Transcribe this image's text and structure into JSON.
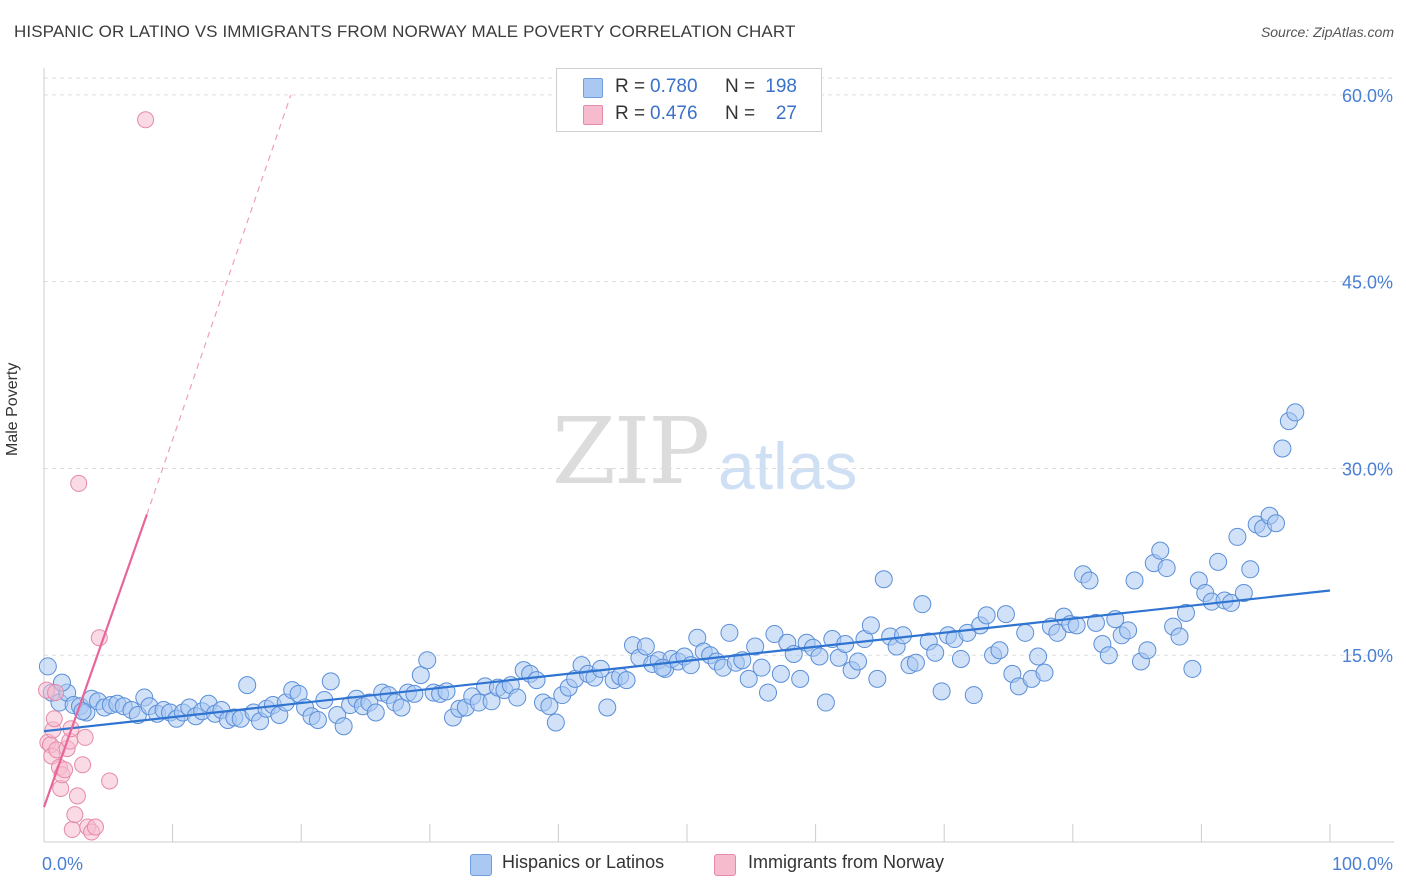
{
  "title": "HISPANIC OR LATINO VS IMMIGRANTS FROM NORWAY MALE POVERTY CORRELATION CHART",
  "source": "Source: ZipAtlas.com",
  "watermark": {
    "zip": "ZIP",
    "atlas": "atlas"
  },
  "legend": {
    "r_label": "R =",
    "n_label": "N =",
    "rows": [
      {
        "r": "0.780",
        "n": "198",
        "color": "#aac8f2"
      },
      {
        "r": "0.476",
        "n": "27",
        "color": "#f6bccd"
      }
    ]
  },
  "bottom_legend": {
    "blue": "Hispanics or Latinos",
    "pink": "Immigrants from Norway"
  },
  "chart_data": {
    "type": "scatter",
    "title": "HISPANIC OR LATINO VS IMMIGRANTS FROM NORWAY MALE POVERTY CORRELATION CHART",
    "xlabel": "",
    "ylabel": "Male Poverty",
    "xlim": [
      0,
      100
    ],
    "ylim": [
      0,
      62
    ],
    "x_ticks": [
      "0.0%",
      "100.0%"
    ],
    "y_ticks": [
      {
        "value": 15,
        "label": "15.0%"
      },
      {
        "value": 30,
        "label": "30.0%"
      },
      {
        "value": 45,
        "label": "45.0%"
      },
      {
        "value": 60,
        "label": "60.0%"
      }
    ],
    "grid": true,
    "colors": {
      "blue": "#2f74d0",
      "blue_fill": "#aac8f2",
      "pink": "#e8659a",
      "pink_fill": "#f6bccd"
    },
    "series": [
      {
        "name": "Hispanics or Latinos",
        "R": 0.78,
        "N": 198,
        "trend": {
          "x0": 0,
          "y0": 8.9,
          "x1": 100,
          "y1": 20.2
        },
        "points": [
          [
            0.3,
            14.1
          ],
          [
            0.6,
            12.0
          ],
          [
            1.2,
            11.2
          ],
          [
            1.8,
            12.0
          ],
          [
            2.3,
            11.0
          ],
          [
            2.8,
            10.9
          ],
          [
            3.3,
            10.4
          ],
          [
            3.7,
            11.5
          ],
          [
            4.2,
            11.3
          ],
          [
            4.7,
            10.8
          ],
          [
            5.2,
            11.0
          ],
          [
            5.7,
            11.1
          ],
          [
            6.2,
            10.9
          ],
          [
            6.8,
            10.6
          ],
          [
            7.3,
            10.2
          ],
          [
            7.8,
            11.6
          ],
          [
            8.2,
            10.9
          ],
          [
            8.8,
            10.3
          ],
          [
            9.3,
            10.6
          ],
          [
            9.8,
            10.4
          ],
          [
            10.3,
            9.9
          ],
          [
            10.8,
            10.4
          ],
          [
            11.3,
            10.8
          ],
          [
            11.8,
            10.1
          ],
          [
            12.3,
            10.5
          ],
          [
            12.8,
            11.1
          ],
          [
            13.3,
            10.3
          ],
          [
            13.8,
            10.6
          ],
          [
            14.3,
            9.8
          ],
          [
            14.8,
            10.0
          ],
          [
            15.3,
            9.9
          ],
          [
            15.8,
            12.6
          ],
          [
            16.3,
            10.4
          ],
          [
            16.8,
            9.7
          ],
          [
            17.3,
            10.7
          ],
          [
            17.8,
            11.0
          ],
          [
            18.3,
            10.2
          ],
          [
            18.8,
            11.2
          ],
          [
            19.3,
            12.2
          ],
          [
            19.8,
            11.9
          ],
          [
            20.3,
            10.8
          ],
          [
            20.8,
            10.1
          ],
          [
            21.3,
            9.8
          ],
          [
            21.8,
            11.4
          ],
          [
            22.3,
            12.9
          ],
          [
            22.8,
            10.2
          ],
          [
            23.3,
            9.3
          ],
          [
            23.8,
            11.0
          ],
          [
            24.3,
            11.5
          ],
          [
            24.8,
            10.9
          ],
          [
            25.3,
            11.2
          ],
          [
            25.8,
            10.4
          ],
          [
            26.3,
            12.0
          ],
          [
            26.8,
            11.8
          ],
          [
            27.3,
            11.2
          ],
          [
            27.8,
            10.8
          ],
          [
            28.3,
            12.0
          ],
          [
            28.8,
            11.9
          ],
          [
            29.3,
            13.4
          ],
          [
            29.8,
            14.6
          ],
          [
            30.3,
            12.0
          ],
          [
            30.8,
            11.9
          ],
          [
            31.3,
            12.1
          ],
          [
            31.8,
            10.0
          ],
          [
            32.3,
            10.7
          ],
          [
            32.8,
            10.8
          ],
          [
            33.3,
            11.7
          ],
          [
            33.8,
            11.2
          ],
          [
            34.3,
            12.5
          ],
          [
            34.8,
            11.3
          ],
          [
            35.3,
            12.4
          ],
          [
            35.8,
            12.2
          ],
          [
            36.3,
            12.6
          ],
          [
            36.8,
            11.6
          ],
          [
            37.3,
            13.8
          ],
          [
            37.8,
            13.5
          ],
          [
            38.3,
            13.0
          ],
          [
            38.8,
            11.2
          ],
          [
            39.3,
            10.9
          ],
          [
            39.8,
            9.6
          ],
          [
            40.3,
            11.8
          ],
          [
            40.8,
            12.4
          ],
          [
            41.3,
            13.1
          ],
          [
            41.8,
            14.2
          ],
          [
            42.3,
            13.5
          ],
          [
            42.8,
            13.2
          ],
          [
            43.3,
            13.9
          ],
          [
            43.8,
            10.8
          ],
          [
            44.3,
            13.0
          ],
          [
            44.8,
            13.3
          ],
          [
            45.3,
            13.0
          ],
          [
            45.8,
            15.8
          ],
          [
            46.3,
            14.8
          ],
          [
            46.8,
            15.7
          ],
          [
            47.3,
            14.3
          ],
          [
            47.8,
            14.6
          ],
          [
            48.3,
            13.9
          ],
          [
            48.8,
            14.7
          ],
          [
            49.3,
            14.5
          ],
          [
            49.8,
            14.9
          ],
          [
            50.3,
            14.2
          ],
          [
            50.8,
            16.4
          ],
          [
            51.3,
            15.3
          ],
          [
            51.8,
            15.0
          ],
          [
            52.3,
            14.5
          ],
          [
            52.8,
            14.0
          ],
          [
            53.3,
            16.8
          ],
          [
            53.8,
            14.4
          ],
          [
            54.3,
            14.6
          ],
          [
            54.8,
            13.1
          ],
          [
            55.3,
            15.7
          ],
          [
            55.8,
            14.0
          ],
          [
            56.3,
            12.0
          ],
          [
            56.8,
            16.7
          ],
          [
            57.3,
            13.5
          ],
          [
            57.8,
            16.0
          ],
          [
            58.3,
            15.1
          ],
          [
            58.8,
            13.1
          ],
          [
            59.3,
            16.0
          ],
          [
            59.8,
            15.6
          ],
          [
            60.3,
            14.9
          ],
          [
            60.8,
            11.2
          ],
          [
            61.3,
            16.3
          ],
          [
            61.8,
            14.8
          ],
          [
            62.3,
            15.9
          ],
          [
            62.8,
            13.8
          ],
          [
            63.3,
            14.5
          ],
          [
            63.8,
            16.3
          ],
          [
            64.3,
            17.4
          ],
          [
            64.8,
            13.1
          ],
          [
            65.3,
            21.1
          ],
          [
            65.8,
            16.5
          ],
          [
            66.3,
            15.7
          ],
          [
            66.8,
            16.6
          ],
          [
            67.3,
            14.2
          ],
          [
            67.8,
            14.4
          ],
          [
            68.3,
            19.1
          ],
          [
            68.8,
            16.1
          ],
          [
            69.3,
            15.2
          ],
          [
            69.8,
            12.1
          ],
          [
            70.3,
            16.6
          ],
          [
            70.8,
            16.3
          ],
          [
            71.3,
            14.7
          ],
          [
            71.8,
            16.8
          ],
          [
            72.3,
            11.8
          ],
          [
            72.8,
            17.4
          ],
          [
            73.3,
            18.2
          ],
          [
            73.8,
            15.0
          ],
          [
            74.3,
            15.4
          ],
          [
            74.8,
            18.3
          ],
          [
            75.3,
            13.5
          ],
          [
            75.8,
            12.5
          ],
          [
            76.3,
            16.8
          ],
          [
            76.8,
            13.1
          ],
          [
            77.3,
            14.9
          ],
          [
            77.8,
            13.6
          ],
          [
            78.3,
            17.3
          ],
          [
            78.8,
            16.8
          ],
          [
            79.3,
            18.1
          ],
          [
            79.8,
            17.5
          ],
          [
            80.3,
            17.4
          ],
          [
            80.8,
            21.5
          ],
          [
            81.3,
            21.0
          ],
          [
            81.8,
            17.6
          ],
          [
            82.3,
            15.9
          ],
          [
            82.8,
            15.0
          ],
          [
            83.3,
            17.9
          ],
          [
            83.8,
            16.6
          ],
          [
            84.3,
            17.0
          ],
          [
            84.8,
            21.0
          ],
          [
            85.3,
            14.5
          ],
          [
            85.8,
            15.4
          ],
          [
            86.3,
            22.4
          ],
          [
            86.8,
            23.4
          ],
          [
            87.3,
            22.0
          ],
          [
            87.8,
            17.3
          ],
          [
            88.3,
            16.5
          ],
          [
            88.8,
            18.4
          ],
          [
            89.3,
            13.9
          ],
          [
            89.8,
            21.0
          ],
          [
            90.3,
            20.0
          ],
          [
            90.8,
            19.3
          ],
          [
            91.3,
            22.5
          ],
          [
            91.8,
            19.4
          ],
          [
            92.3,
            19.2
          ],
          [
            92.8,
            24.5
          ],
          [
            93.3,
            20.0
          ],
          [
            93.8,
            21.9
          ],
          [
            94.3,
            25.5
          ],
          [
            94.8,
            25.2
          ],
          [
            95.3,
            26.2
          ],
          [
            95.8,
            25.6
          ],
          [
            96.3,
            31.6
          ],
          [
            96.8,
            33.8
          ],
          [
            97.3,
            34.5
          ],
          [
            1.4,
            12.8
          ],
          [
            3.0,
            10.5
          ],
          [
            48.1,
            14.0
          ]
        ]
      },
      {
        "name": "Immigrants from Norway",
        "R": 0.476,
        "N": 27,
        "trend": {
          "x0": 0,
          "y0": 2.8,
          "x1": 8.0,
          "y1": 26.3
        },
        "trend_dashed": {
          "x0": 8.0,
          "y0": 26.3,
          "x1": 19.2,
          "y1": 60.0
        },
        "points": [
          [
            0.2,
            12.2
          ],
          [
            0.3,
            8.0
          ],
          [
            0.5,
            7.8
          ],
          [
            0.6,
            6.9
          ],
          [
            0.7,
            9.0
          ],
          [
            0.8,
            9.9
          ],
          [
            1.0,
            7.4
          ],
          [
            1.2,
            6.0
          ],
          [
            1.3,
            4.3
          ],
          [
            1.4,
            5.4
          ],
          [
            1.6,
            5.8
          ],
          [
            1.8,
            7.5
          ],
          [
            2.0,
            8.1
          ],
          [
            2.2,
            1.0
          ],
          [
            2.4,
            2.2
          ],
          [
            2.6,
            3.7
          ],
          [
            2.7,
            28.8
          ],
          [
            3.0,
            6.2
          ],
          [
            3.2,
            8.4
          ],
          [
            3.4,
            1.2
          ],
          [
            3.7,
            0.8
          ],
          [
            4.0,
            1.2
          ],
          [
            4.3,
            16.4
          ],
          [
            5.1,
            4.9
          ],
          [
            7.9,
            58.0
          ],
          [
            2.1,
            9.1
          ],
          [
            0.9,
            12.0
          ]
        ]
      }
    ]
  }
}
